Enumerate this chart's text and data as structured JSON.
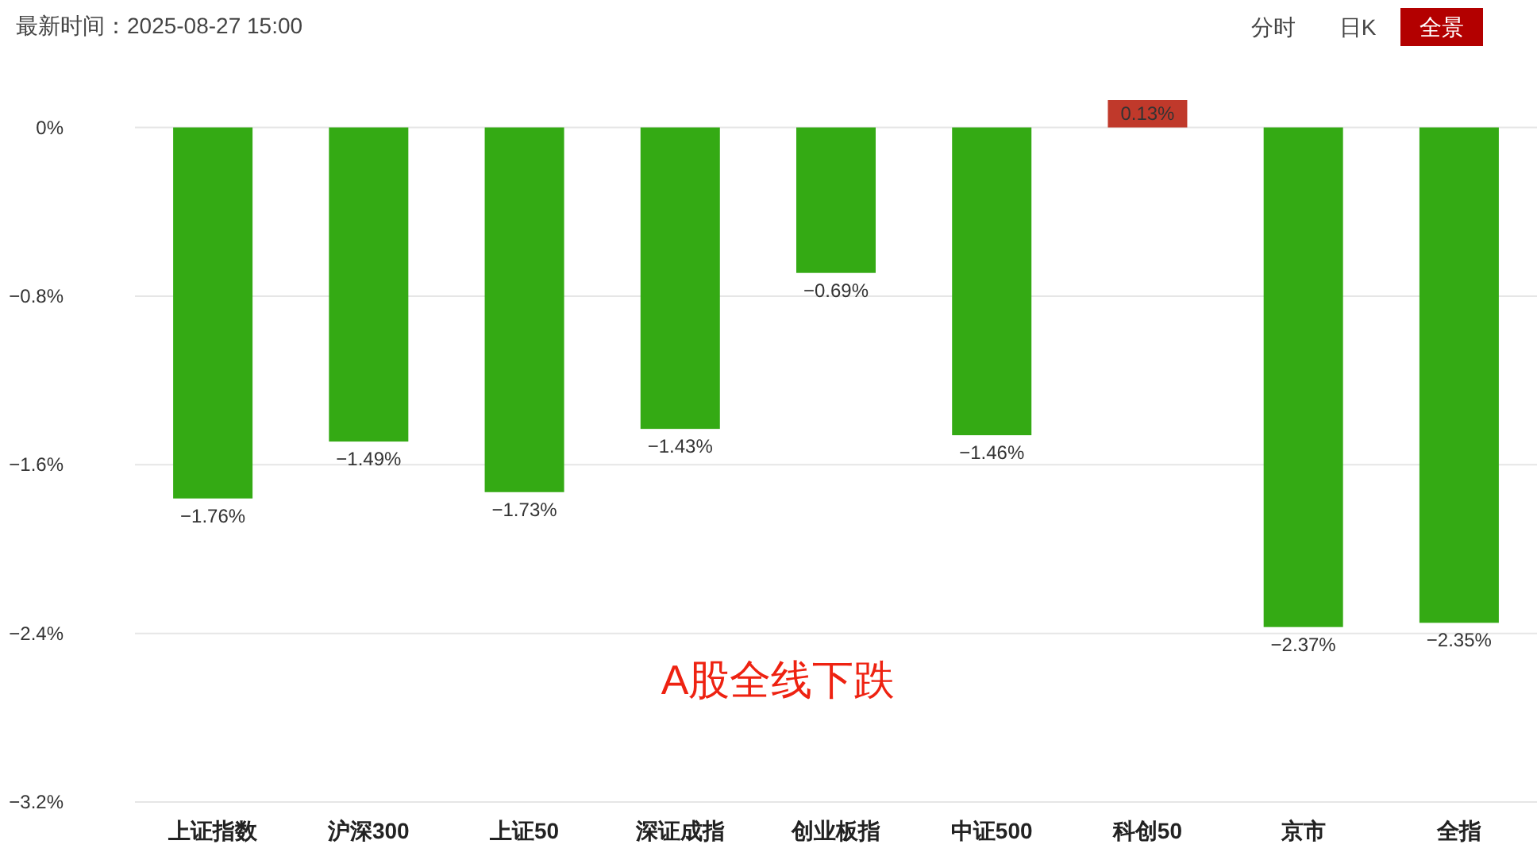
{
  "chart_data": {
    "type": "bar",
    "subtitle": "最新时间：2025-08-27 15:00",
    "annotations": [
      "A股全线下跌",
      "分时",
      "日K",
      "全景"
    ],
    "categories": [
      "上证指数",
      "沪深300",
      "上证50",
      "深证成指",
      "创业板指",
      "中证500",
      "科创50",
      "京市",
      "全指"
    ],
    "values": [
      -1.76,
      -1.49,
      -1.73,
      -1.43,
      -0.69,
      -1.46,
      0.13,
      -2.37,
      -2.35
    ],
    "colors": [
      "#34aa14",
      "#34aa14",
      "#34aa14",
      "#34aa14",
      "#34aa14",
      "#34aa14",
      "#c0392b",
      "#34aa14",
      "#34aa14"
    ],
    "value_labels": [
      "−1.76%",
      "−1.49%",
      "−1.73%",
      "−1.43%",
      "−0.69%",
      "−1.46%",
      "0.13%",
      "−2.37%",
      "−2.35%"
    ],
    "ylim": [
      -3.2,
      0.13
    ],
    "yticks": [
      {
        "value": 0,
        "label": "0%"
      },
      {
        "value": -0.8,
        "label": "−0.8%"
      },
      {
        "value": -1.6,
        "label": "−1.6%"
      },
      {
        "value": -2.4,
        "label": "−2.4%"
      },
      {
        "value": -3.2,
        "label": "−3.2%"
      }
    ],
    "grid": "y"
  }
}
